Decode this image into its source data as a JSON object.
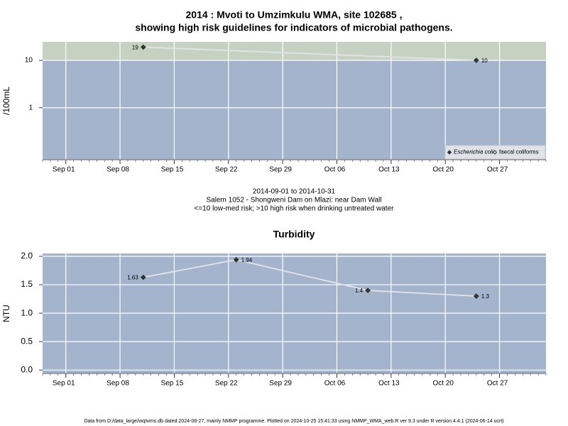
{
  "title": [
    "2014 : Mvoti to Umzimkulu WMA, site 102685 ,",
    "showing high risk guidelines for indicators of microbial pathogens."
  ],
  "notes": [
    "2014-09-01 to 2014-10-31",
    "Salem 1052 - Shongweni Dam on Mlazi: near Dam Wall",
    "<=10 low-med risk; >10 high risk when drinking untreated water"
  ],
  "footer": "Data from D:/data_large/wq/wms.db dated 2024-08-27, mainly NMMP programme. Plotted on 2024-10-25 15:41:33 using NMMP_WMA_web.R ver 9.3 under R version 4.4.1 (2024-06-14 ucrt)",
  "chart_data": [
    {
      "type": "line",
      "y_label": "/100mL",
      "log_y": true,
      "grid": true,
      "threshold": 10,
      "x": [
        "2014-09-11",
        "2014-10-24"
      ],
      "series": [
        {
          "name": "Escherichia coli",
          "color": "#333333",
          "marker": "filled-diamond",
          "values": [
            19,
            10
          ]
        },
        {
          "name": "faecal coliforms",
          "color": "#333333",
          "marker": "open-diamond",
          "values": [
            null,
            null
          ]
        }
      ],
      "xlim": [
        "2014-08-29",
        "2014-11-02"
      ],
      "xticks": [
        {
          "value": "2014-09-01",
          "label": "Sep 01"
        },
        {
          "value": "2014-09-08",
          "label": "Sep 08"
        },
        {
          "value": "2014-09-15",
          "label": "Sep 15"
        },
        {
          "value": "2014-09-22",
          "label": "Sep 22"
        },
        {
          "value": "2014-09-29",
          "label": "Sep 29"
        },
        {
          "value": "2014-10-06",
          "label": "Oct 06"
        },
        {
          "value": "2014-10-13",
          "label": "Oct 13"
        },
        {
          "value": "2014-10-20",
          "label": "Oct 20"
        },
        {
          "value": "2014-10-27",
          "label": "Oct 27"
        }
      ],
      "ylim": [
        0.08,
        24.5
      ],
      "yticks": [
        1,
        10
      ],
      "legend": "bottom-right"
    },
    {
      "type": "line",
      "title": "Turbidity",
      "y_label": "NTU",
      "log_y": false,
      "grid": true,
      "x": [
        "2014-09-11",
        "2014-09-23",
        "2014-10-10",
        "2014-10-24"
      ],
      "series": [
        {
          "name": "Turbidity",
          "color": "#333333",
          "marker": "filled-diamond",
          "values": [
            1.63,
            1.94,
            1.4,
            1.3
          ]
        }
      ],
      "xlim": [
        "2014-08-29",
        "2014-11-02"
      ],
      "xticks": [
        {
          "value": "2014-09-01",
          "label": "Sep 01"
        },
        {
          "value": "2014-09-08",
          "label": "Sep 08"
        },
        {
          "value": "2014-09-15",
          "label": "Sep 15"
        },
        {
          "value": "2014-09-22",
          "label": "Sep 22"
        },
        {
          "value": "2014-09-29",
          "label": "Sep 29"
        },
        {
          "value": "2014-10-06",
          "label": "Oct 06"
        },
        {
          "value": "2014-10-13",
          "label": "Oct 13"
        },
        {
          "value": "2014-10-20",
          "label": "Oct 20"
        },
        {
          "value": "2014-10-27",
          "label": "Oct 27"
        }
      ],
      "ylim": [
        -0.06,
        2.05
      ],
      "yticks": [
        {
          "value": 0,
          "label": "0.0"
        },
        {
          "value": 0.5,
          "label": "0.5"
        },
        {
          "value": 1,
          "label": "1.0"
        },
        {
          "value": 1.5,
          "label": "1.5"
        },
        {
          "value": 2,
          "label": "2.0"
        }
      ]
    }
  ]
}
